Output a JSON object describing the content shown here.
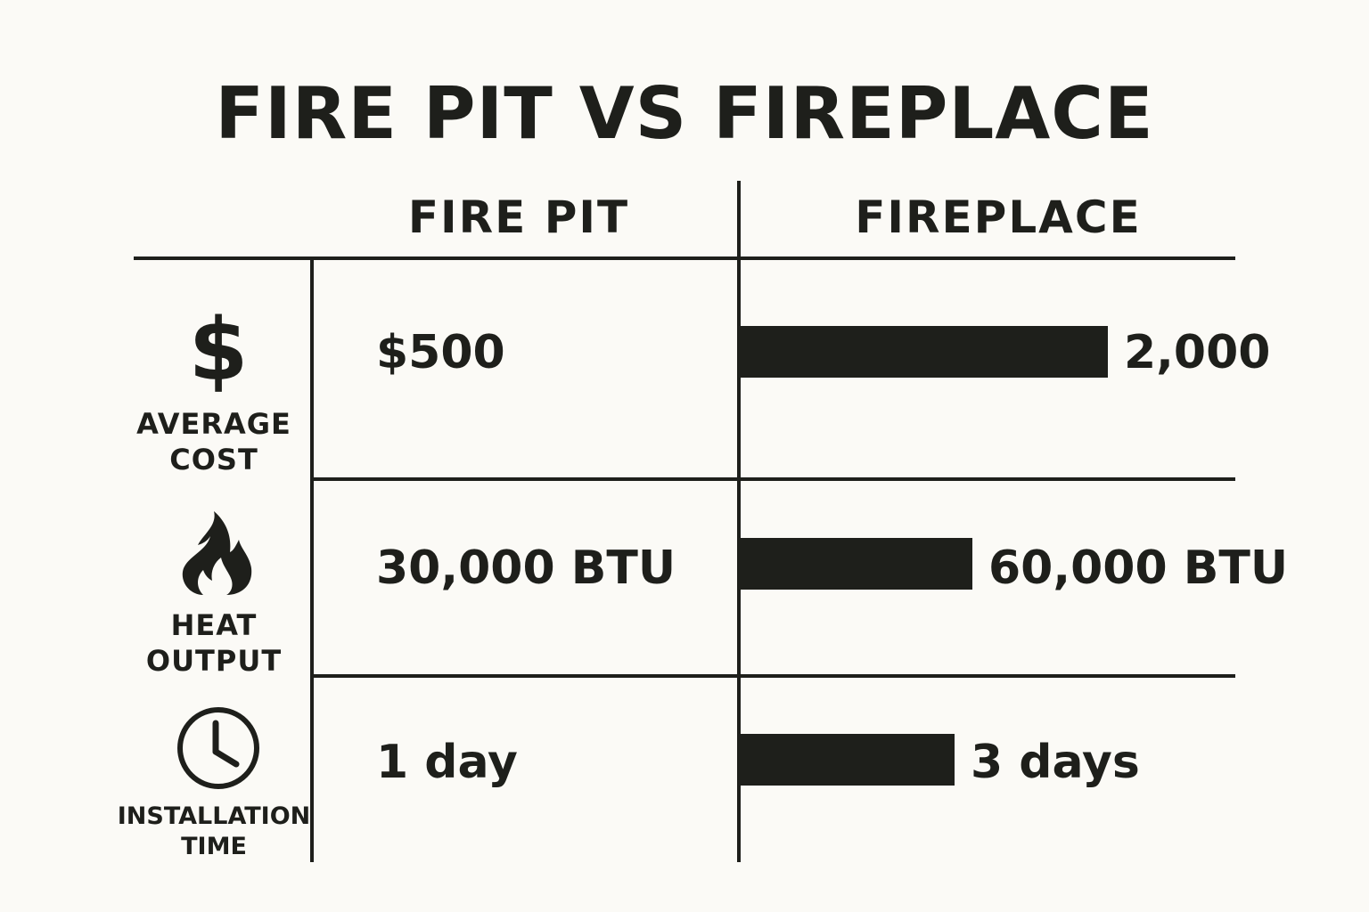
{
  "chart_data": {
    "type": "table",
    "title": "FIRE PIT VS FIREPLACE",
    "columns": [
      "FIRE PIT",
      "FIREPLACE"
    ],
    "colors": {
      "ink": "#1e1f1b",
      "background": "#fbfaf6"
    },
    "rows": [
      {
        "label_lines": [
          "AVERAGE",
          "COST"
        ],
        "icon": "dollar-icon",
        "icon_glyph": "$",
        "fire_pit": "$500",
        "fireplace": "2,000",
        "fireplace_value": 2000
      },
      {
        "label_lines": [
          "HEAT",
          "OUTPUT"
        ],
        "icon": "flame-icon",
        "fire_pit": "30,000 BTU",
        "fireplace": "60,000 BTU",
        "fireplace_value": 60000
      },
      {
        "label_lines": [
          "INSTALLATION",
          "TIME"
        ],
        "icon": "clock-icon",
        "fire_pit": "1 day",
        "fireplace": "3 days",
        "fireplace_value": 3
      }
    ]
  }
}
